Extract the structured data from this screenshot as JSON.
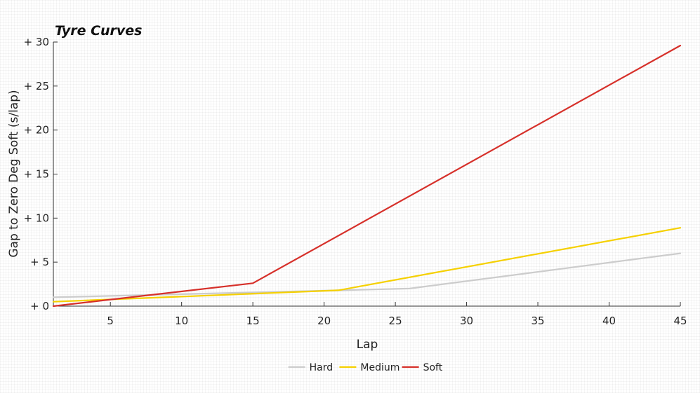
{
  "chart_data": {
    "type": "line",
    "title": "Tyre Curves",
    "xlabel": "Lap",
    "ylabel": "Gap to Zero Deg Soft (s/lap)",
    "xlim": [
      1,
      45
    ],
    "ylim": [
      0,
      30
    ],
    "x_ticks": [
      5,
      10,
      15,
      20,
      25,
      30,
      35,
      40,
      45
    ],
    "x_tick_labels": [
      "5",
      "10",
      "15",
      "20",
      "25",
      "30",
      "35",
      "40",
      "45"
    ],
    "y_ticks": [
      0,
      5,
      10,
      15,
      20,
      25,
      30
    ],
    "y_tick_labels": [
      "+ 0",
      "+ 5",
      "+ 10",
      "+ 15",
      "+ 20",
      "+ 25",
      "+ 30"
    ],
    "grid": false,
    "legend_position": "bottom-center",
    "series": [
      {
        "name": "Hard",
        "color": "#cccccc",
        "points": [
          [
            1,
            1.0
          ],
          [
            26,
            2.0
          ],
          [
            45,
            6.0
          ]
        ]
      },
      {
        "name": "Medium",
        "color": "#f5d000",
        "points": [
          [
            1,
            0.5
          ],
          [
            21,
            1.8
          ],
          [
            45,
            8.9
          ]
        ]
      },
      {
        "name": "Soft",
        "color": "#d6302a",
        "points": [
          [
            1,
            0.0
          ],
          [
            15,
            2.6
          ],
          [
            45,
            29.6
          ]
        ]
      }
    ]
  }
}
